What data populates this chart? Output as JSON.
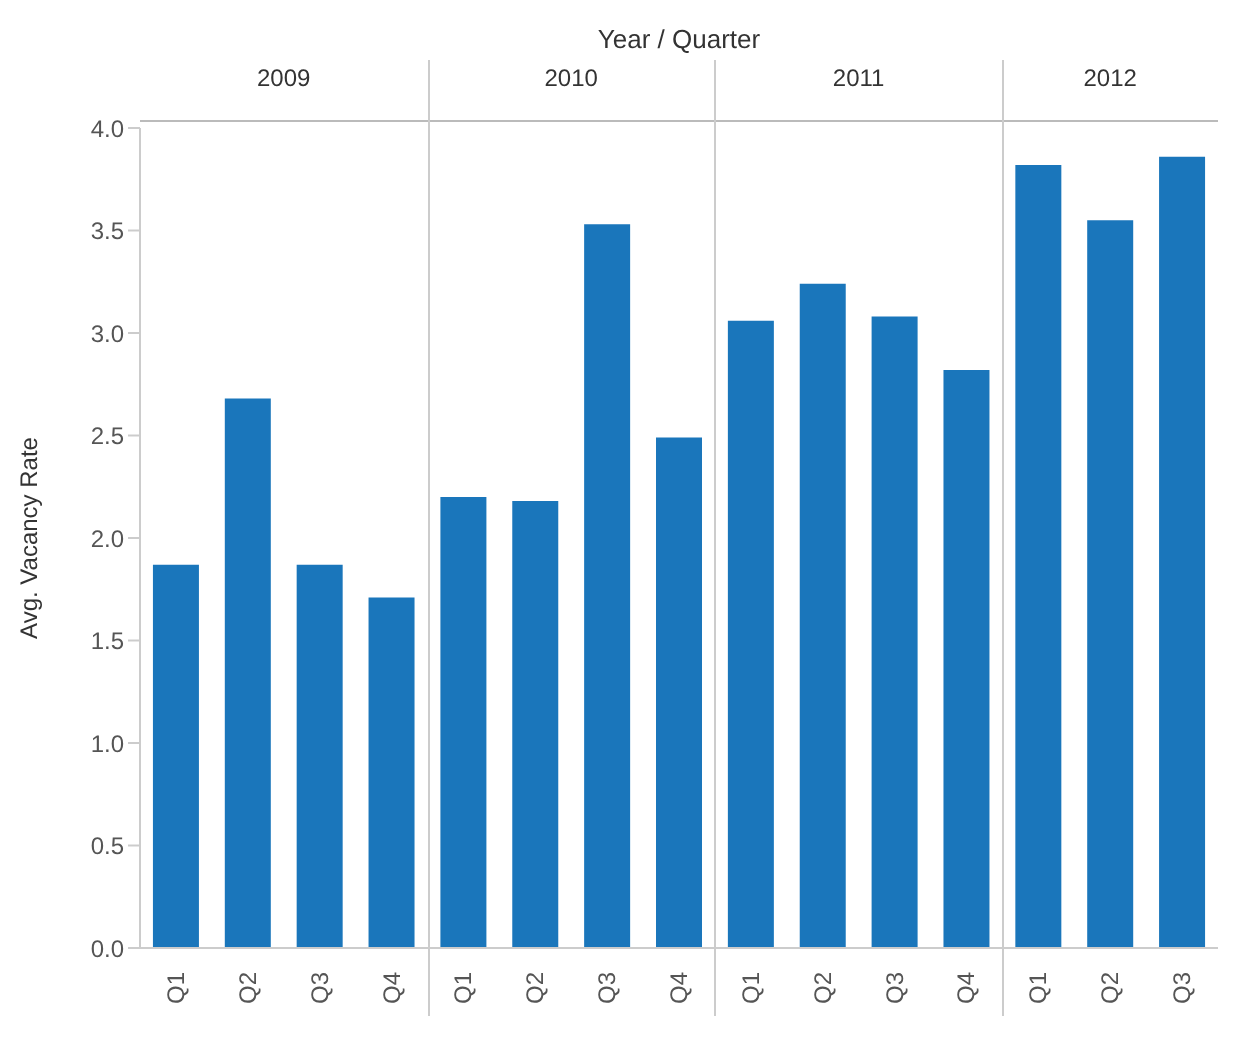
{
  "chart_data": {
    "type": "bar",
    "xlabel": "Year / Quarter",
    "ylabel": "Avg. Vacancy Rate",
    "categories": [
      "Q1",
      "Q2",
      "Q3",
      "Q4",
      "Q1",
      "Q2",
      "Q3",
      "Q4",
      "Q1",
      "Q2",
      "Q3",
      "Q4",
      "Q1",
      "Q2",
      "Q3"
    ],
    "values": [
      1.87,
      2.68,
      1.87,
      1.71,
      2.2,
      2.18,
      3.53,
      2.49,
      3.06,
      3.24,
      3.08,
      2.82,
      3.82,
      3.55,
      3.86
    ],
    "color": "#1a76bb",
    "ylim": [
      0,
      4
    ],
    "yticks": [
      {
        "value": 0,
        "label": "0.0"
      },
      0.5,
      {
        "value": 1,
        "label": "1.0"
      },
      1.5,
      {
        "value": 2,
        "label": "2.0"
      },
      2.5,
      {
        "value": 3,
        "label": "3.0"
      },
      3.5,
      {
        "value": 4,
        "label": "4.0"
      }
    ],
    "grid": false,
    "annotations": [
      "2009",
      "2010",
      "2011",
      "2012"
    ]
  }
}
